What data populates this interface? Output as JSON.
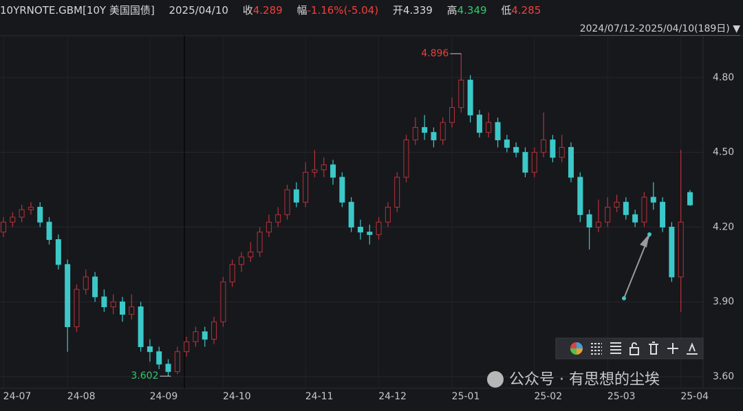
{
  "header": {
    "symbol": "10YRNOTE.GBM[10Y 美国国债]",
    "date": "2025/04/10",
    "close_label": "收",
    "change_label": "幅",
    "change": "-1.16%(-5.04)",
    "open_label": "开",
    "high_label": "高",
    "low_label": "低",
    "range": "2024/07/12-2025/04/10(189日)"
  },
  "chart_data": {
    "type": "candlestick",
    "categories": [
      "24-07",
      null,
      null,
      null,
      null,
      null,
      null,
      "24-08",
      null,
      null,
      null,
      null,
      null,
      null,
      null,
      null,
      "24-09",
      null,
      null,
      null,
      null,
      null,
      null,
      null,
      "24-10",
      null,
      null,
      null,
      null,
      null,
      null,
      null,
      null,
      "24-11",
      null,
      null,
      null,
      null,
      null,
      null,
      null,
      "24-12",
      null,
      null,
      null,
      null,
      null,
      null,
      null,
      "25-01",
      null,
      null,
      null,
      null,
      null,
      null,
      null,
      null,
      "25-02",
      null,
      null,
      null,
      null,
      null,
      null,
      null,
      "25-03",
      null,
      null,
      null,
      null,
      null,
      null,
      null,
      "25-04",
      null
    ],
    "open": [
      4.18,
      4.22,
      4.24,
      4.27,
      4.28,
      4.22,
      4.15,
      4.05,
      3.8,
      3.95,
      4.0,
      3.92,
      3.88,
      3.9,
      3.85,
      3.88,
      3.72,
      3.7,
      3.65,
      3.62,
      3.7,
      3.74,
      3.78,
      3.75,
      3.82,
      3.98,
      4.05,
      4.08,
      4.1,
      4.18,
      4.22,
      4.25,
      4.35,
      4.3,
      4.42,
      4.43,
      4.45,
      4.4,
      4.3,
      4.2,
      4.18,
      4.17,
      4.22,
      4.28,
      4.4,
      4.55,
      4.6,
      4.58,
      4.55,
      4.62,
      4.68,
      4.79,
      4.65,
      4.58,
      4.62,
      4.55,
      4.52,
      4.5,
      4.42,
      4.5,
      4.55,
      4.48,
      4.52,
      4.4,
      4.25,
      4.2,
      4.22,
      4.28,
      4.3,
      4.25,
      4.22,
      4.32,
      4.3,
      4.2,
      4.0,
      4.339
    ],
    "high": [
      4.24,
      4.26,
      4.29,
      4.3,
      4.3,
      4.24,
      4.17,
      4.07,
      3.97,
      4.03,
      4.02,
      3.95,
      3.93,
      3.92,
      3.93,
      3.9,
      3.75,
      3.72,
      3.67,
      3.72,
      3.76,
      3.8,
      3.8,
      3.84,
      4.0,
      4.07,
      4.1,
      4.14,
      4.2,
      4.25,
      4.28,
      4.37,
      4.38,
      4.46,
      4.51,
      4.48,
      4.47,
      4.42,
      4.32,
      4.23,
      4.21,
      4.24,
      4.3,
      4.42,
      4.57,
      4.64,
      4.65,
      4.6,
      4.64,
      4.72,
      4.896,
      4.81,
      4.67,
      4.66,
      4.64,
      4.57,
      4.54,
      4.52,
      4.52,
      4.66,
      4.57,
      4.57,
      4.54,
      4.42,
      4.27,
      4.31,
      4.32,
      4.33,
      4.32,
      4.27,
      4.34,
      4.38,
      4.32,
      4.22,
      4.51,
      4.349
    ],
    "low": [
      4.16,
      4.2,
      4.22,
      4.25,
      4.2,
      4.13,
      4.03,
      3.7,
      3.78,
      3.93,
      3.9,
      3.86,
      3.85,
      3.82,
      3.83,
      3.7,
      3.66,
      3.63,
      3.602,
      3.61,
      3.68,
      3.72,
      3.72,
      3.73,
      3.8,
      3.96,
      4.02,
      4.06,
      4.08,
      4.16,
      4.2,
      4.23,
      4.28,
      4.28,
      4.4,
      4.4,
      4.37,
      4.28,
      4.18,
      4.15,
      4.13,
      4.15,
      4.2,
      4.26,
      4.38,
      4.53,
      4.55,
      4.52,
      4.53,
      4.6,
      4.66,
      4.62,
      4.56,
      4.56,
      4.52,
      4.5,
      4.48,
      4.4,
      4.4,
      4.48,
      4.46,
      4.46,
      4.38,
      4.22,
      4.11,
      4.18,
      4.2,
      4.26,
      4.23,
      4.2,
      4.2,
      4.27,
      4.18,
      3.98,
      3.86,
      4.285
    ],
    "close": [
      4.22,
      4.24,
      4.27,
      4.28,
      4.22,
      4.15,
      4.05,
      3.8,
      3.95,
      4.0,
      3.92,
      3.88,
      3.9,
      3.85,
      3.88,
      3.72,
      3.7,
      3.65,
      3.62,
      3.7,
      3.74,
      3.78,
      3.75,
      3.82,
      3.98,
      4.05,
      4.08,
      4.1,
      4.18,
      4.22,
      4.25,
      4.35,
      4.3,
      4.42,
      4.43,
      4.45,
      4.4,
      4.3,
      4.2,
      4.18,
      4.17,
      4.22,
      4.28,
      4.4,
      4.55,
      4.6,
      4.58,
      4.55,
      4.62,
      4.68,
      4.79,
      4.65,
      4.58,
      4.62,
      4.55,
      4.52,
      4.5,
      4.42,
      4.5,
      4.55,
      4.48,
      4.52,
      4.4,
      4.25,
      4.2,
      4.22,
      4.28,
      4.3,
      4.25,
      4.22,
      4.32,
      4.3,
      4.2,
      4.0,
      4.22,
      4.289
    ],
    "up_color": "#b8323a",
    "down_color": "#3cc8c8",
    "ylim": [
      3.553,
      4.968
    ],
    "yticks": [
      {
        "value": 3.6,
        "label": "3.60"
      },
      {
        "value": 3.9,
        "label": "3.90"
      },
      {
        "value": 4.2,
        "label": "4.20"
      },
      {
        "value": 4.5,
        "label": "4.50"
      },
      {
        "value": 4.8,
        "label": "4.80"
      }
    ],
    "grid": true,
    "watermark": "公众号 · 有思想的尘埃"
  }
}
